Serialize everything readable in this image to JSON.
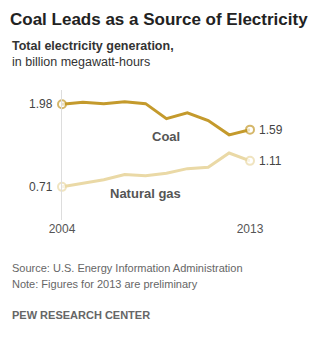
{
  "chart_data": {
    "type": "line",
    "title": "Coal Leads as a Source of Electricity",
    "subtitle": "Total electricity generation,",
    "ylabel": "in billion megawatt-hours",
    "source": "Source: U.S. Energy Information Administration",
    "note": "Note: Figures for 2013 are preliminary",
    "credit": "PEW RESEARCH CENTER",
    "x": [
      2004,
      2005,
      2006,
      2007,
      2008,
      2009,
      2010,
      2011,
      2012,
      2013
    ],
    "series": [
      {
        "name": "Coal",
        "color": "#c49a2c",
        "marker": "circle",
        "values": [
          1.98,
          2.01,
          1.99,
          2.02,
          1.99,
          1.76,
          1.85,
          1.73,
          1.51,
          1.59
        ],
        "value_labels": [
          "1.98",
          null,
          null,
          null,
          null,
          null,
          null,
          null,
          null,
          "1.59"
        ]
      },
      {
        "name": "Natural gas",
        "color": "#ead9a6",
        "marker": "circle",
        "values": [
          0.71,
          0.76,
          0.82,
          0.9,
          0.88,
          0.92,
          0.99,
          1.01,
          1.23,
          1.11
        ],
        "value_labels": [
          "0.71",
          null,
          null,
          null,
          null,
          null,
          null,
          null,
          null,
          "1.11"
        ]
      }
    ],
    "xlim": [
      2004,
      2013
    ],
    "xticks": [
      2004,
      2013
    ],
    "ylim": [
      0.2,
      2.2
    ],
    "tick_labels": "x",
    "grid": false
  }
}
